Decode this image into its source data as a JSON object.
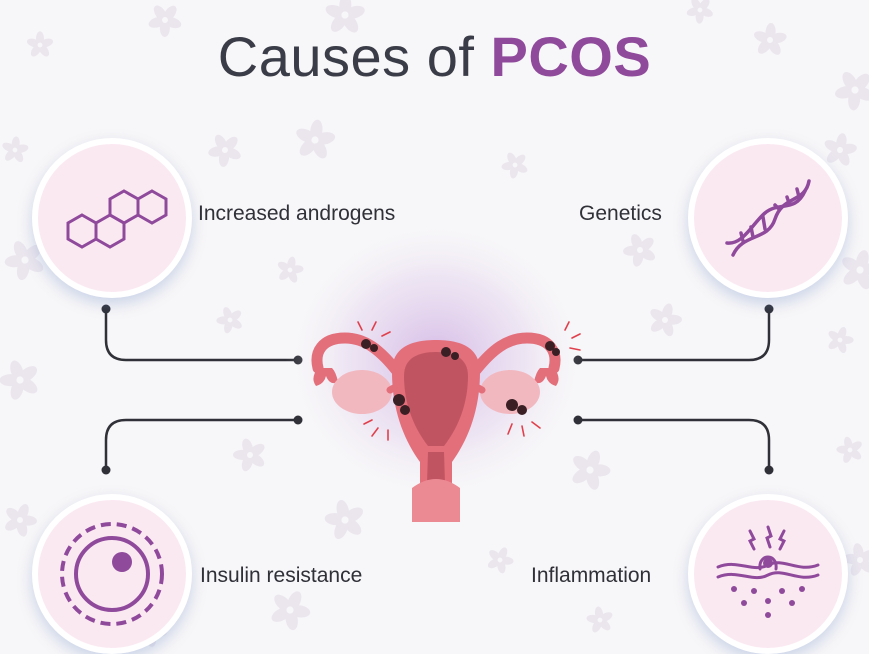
{
  "title": {
    "prefix": "Causes of",
    "highlight": "PCOS"
  },
  "causes": [
    {
      "label": "Increased androgens",
      "icon": "hexagon-molecule-icon"
    },
    {
      "label": "Genetics",
      "icon": "dna-helix-icon"
    },
    {
      "label": "Insulin resistance",
      "icon": "cell-icon"
    },
    {
      "label": "Inflammation",
      "icon": "skin-inflammation-icon"
    }
  ],
  "colors": {
    "accent": "#8f4a9c",
    "icon_circle": "#fbe9f2",
    "connector": "#2f3038",
    "organ": "#e36f7b",
    "organ_dark": "#c05561",
    "cyst": "#3a1f24"
  }
}
